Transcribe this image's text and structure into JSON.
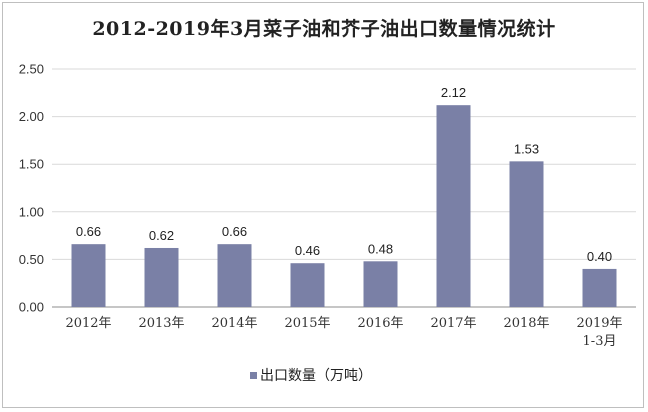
{
  "chart_data": {
    "type": "bar",
    "title": "2012-2019年3月菜子油和芥子油出口数量情况统计",
    "categories": [
      "2012年",
      "2013年",
      "2014年",
      "2015年",
      "2016年",
      "2017年",
      "2018年",
      "2019年\n1-3月"
    ],
    "series": [
      {
        "name": "出口数量（万吨）",
        "values": [
          0.66,
          0.62,
          0.66,
          0.46,
          0.48,
          2.12,
          1.53,
          0.4
        ],
        "data_labels": [
          "0.66",
          "0.62",
          "0.66",
          "0.46",
          "0.48",
          "2.12",
          "1.53",
          "0.40"
        ]
      }
    ],
    "ylim": [
      0,
      2.5
    ],
    "yticks": [
      "0.00",
      "0.50",
      "1.00",
      "1.50",
      "2.00",
      "2.50"
    ],
    "xlabel": "",
    "ylabel": "",
    "grid": true,
    "legend_position": "bottom",
    "colors": {
      "bar": "#7a80a6",
      "grid": "#d9d9d9",
      "axis": "#8c8c8c"
    }
  }
}
